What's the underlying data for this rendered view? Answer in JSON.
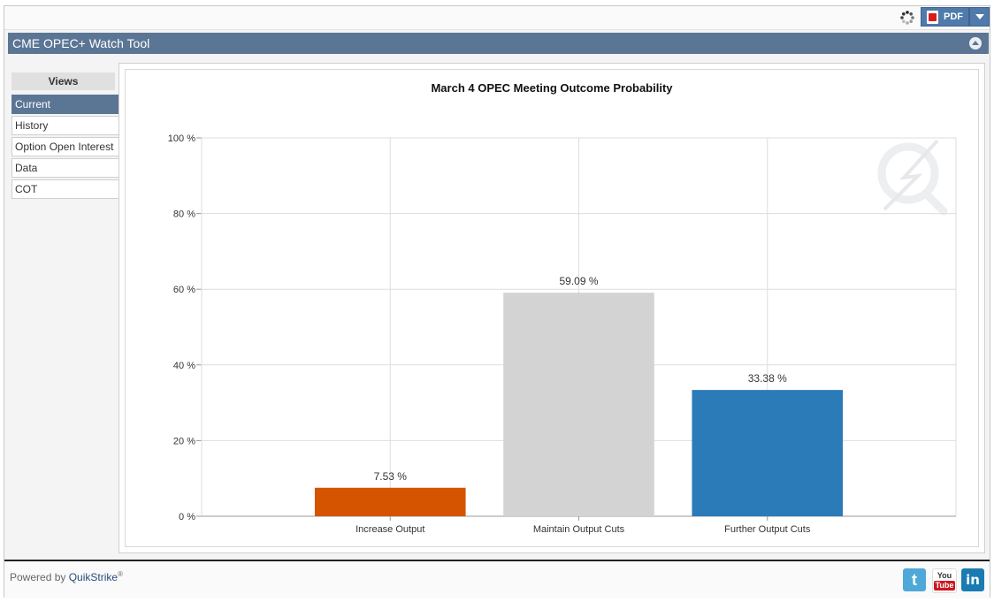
{
  "toolbar": {
    "pdf_label": "PDF"
  },
  "header": {
    "title": "CME OPEC+ Watch Tool"
  },
  "views": {
    "heading": "Views",
    "items": [
      {
        "label": "Current",
        "active": true
      },
      {
        "label": "History",
        "active": false
      },
      {
        "label": "Option Open Interest",
        "active": false
      },
      {
        "label": "Data",
        "active": false
      },
      {
        "label": "COT",
        "active": false
      }
    ]
  },
  "footer": {
    "powered_prefix": "Powered by ",
    "brand": "QuikStrike",
    "reg": "®"
  },
  "social": {
    "twitter": "t",
    "youtube_top": "You",
    "youtube_bottom": "Tube",
    "linkedin": "in"
  },
  "chart_data": {
    "type": "bar",
    "title": "March 4 OPEC Meeting Outcome Probability",
    "categories": [
      "Increase Output",
      "Maintain Output Cuts",
      "Further Output Cuts"
    ],
    "values": [
      7.53,
      59.09,
      33.38
    ],
    "value_labels": [
      "7.53 %",
      "59.09 %",
      "33.38 %"
    ],
    "colors": [
      "#d45400",
      "#d3d3d3",
      "#2b7bb9"
    ],
    "yticks": [
      "0 %",
      "20 %",
      "40 %",
      "60 %",
      "80 %",
      "100 %"
    ],
    "ylim": [
      0,
      100
    ],
    "grid": true,
    "xlabel": "",
    "ylabel": ""
  }
}
